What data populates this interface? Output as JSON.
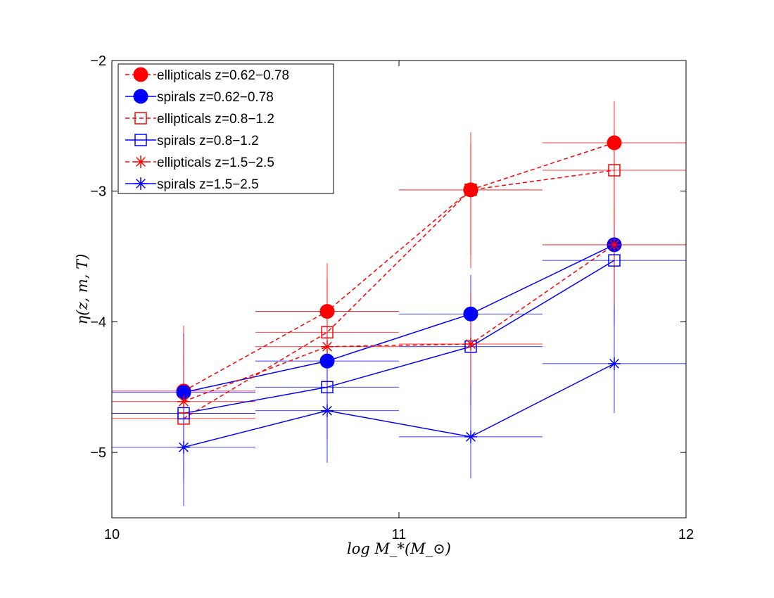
{
  "chart_data": {
    "type": "line",
    "title": "",
    "xlabel": "log M_*(M_⊙)",
    "ylabel": "η(z, m, T)",
    "xlim": [
      10,
      12
    ],
    "ylim": [
      -5.5,
      -2
    ],
    "xticks": [
      10,
      11,
      12
    ],
    "yticks": [
      -5,
      -4,
      -3,
      -2
    ],
    "xtick_labels": [
      "10",
      "11",
      "12"
    ],
    "ytick_labels": [
      "−5",
      "−4",
      "−3",
      "−2"
    ],
    "grid": false,
    "legend_position": "top-left",
    "x": [
      10.25,
      10.75,
      11.25,
      11.75
    ],
    "x_error": 0.25,
    "series": [
      {
        "name": "ellipticals z=0.62−0.78",
        "color": "#ff0000",
        "marker": "filled-circle",
        "line_style": "dashed",
        "values": [
          -4.53,
          -3.92,
          -2.99,
          -2.63
        ],
        "y_error_low": [
          0.6,
          0.45,
          0.6,
          0.6
        ],
        "y_error_high": [
          0.5,
          0.37,
          0.44,
          0.32
        ]
      },
      {
        "name": "spirals z=0.62−0.78",
        "color": "#0000ff",
        "marker": "filled-circle",
        "line_style": "solid",
        "values": [
          -4.54,
          -4.3,
          -3.94,
          -3.41
        ],
        "y_error_low": [
          0.4,
          0.38,
          0.55,
          0.45
        ],
        "y_error_high": [
          0.45,
          0.4,
          0.3,
          0.3
        ]
      },
      {
        "name": "ellipticals z=0.8−1.2",
        "color": "#ff0000",
        "marker": "open-square",
        "line_style": "dashed",
        "values": [
          -4.74,
          -4.08,
          -2.99,
          -2.84
        ],
        "y_error_low": [
          0.45,
          0.4,
          0.5,
          0.55
        ],
        "y_error_high": [
          0.4,
          0.42,
          0.36,
          0.3
        ]
      },
      {
        "name": "spirals z=0.8−1.2",
        "color": "#0000ff",
        "marker": "open-square",
        "line_style": "solid",
        "values": [
          -4.7,
          -4.5,
          -4.19,
          -3.53
        ],
        "y_error_low": [
          0.4,
          0.4,
          0.45,
          0.5
        ],
        "y_error_high": [
          0.45,
          0.4,
          0.4,
          0.25
        ]
      },
      {
        "name": "ellipticals z=1.5−2.5",
        "color": "#ff0000",
        "marker": "asterisk",
        "line_style": "dashed",
        "values": [
          -4.61,
          -4.19,
          -4.17,
          -3.41
        ],
        "y_error_low": [
          0.6,
          0.45,
          0.4,
          0.5
        ],
        "y_error_high": [
          0.5,
          0.5,
          0.4,
          0.3
        ]
      },
      {
        "name": "spirals z=1.5−2.5",
        "color": "#0000ff",
        "marker": "asterisk",
        "line_style": "solid",
        "values": [
          -4.96,
          -4.68,
          -4.88,
          -4.32
        ],
        "y_error_low": [
          0.45,
          0.4,
          0.32,
          0.38
        ],
        "y_error_high": [
          0.36,
          0.42,
          0.4,
          0.45
        ]
      }
    ]
  }
}
